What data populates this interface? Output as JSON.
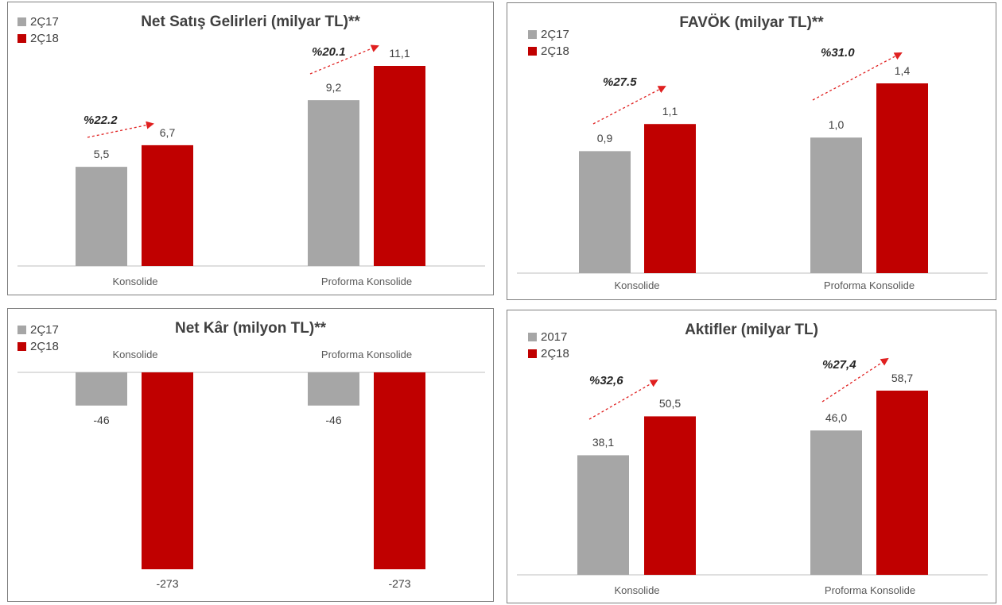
{
  "colors": {
    "prev": "#a6a6a6",
    "curr": "#c00000",
    "arrow": "#e02020",
    "axis": "#bfbfbf"
  },
  "chart_data": [
    {
      "type": "bar",
      "title": "Net Satış Gelirleri (milyar TL)**",
      "categories": [
        "Konsolide",
        "Proforma Konsolide"
      ],
      "series": [
        {
          "name": "2Ç17",
          "values": [
            5.5,
            9.2
          ],
          "labels": [
            "5,5",
            "9,2"
          ]
        },
        {
          "name": "2Ç18",
          "values": [
            6.7,
            11.1
          ],
          "labels": [
            "6,7",
            "11,1"
          ]
        }
      ],
      "growth": [
        "%22.2",
        "%20.1"
      ],
      "ylim": [
        0,
        11.1
      ],
      "legend": "top-left",
      "grid": false
    },
    {
      "type": "bar",
      "title": "FAVÖK (milyar TL)**",
      "categories": [
        "Konsolide",
        "Proforma Konsolide"
      ],
      "series": [
        {
          "name": "2Ç17",
          "values": [
            0.9,
            1.0
          ],
          "labels": [
            "0,9",
            "1,0"
          ]
        },
        {
          "name": "2Ç18",
          "values": [
            1.1,
            1.4
          ],
          "labels": [
            "1,1",
            "1,4"
          ]
        }
      ],
      "growth": [
        "%27.5",
        "%31.0"
      ],
      "ylim": [
        0,
        1.4
      ],
      "legend": "top-left",
      "grid": false
    },
    {
      "type": "bar",
      "title": "Net Kâr (milyon TL)**",
      "categories": [
        "Konsolide",
        "Proforma Konsolide"
      ],
      "series": [
        {
          "name": "2Ç17",
          "values": [
            -46,
            -46
          ],
          "labels": [
            "-46",
            "-46"
          ]
        },
        {
          "name": "2Ç18",
          "values": [
            -273,
            -273
          ],
          "labels": [
            "-273",
            "-273"
          ]
        }
      ],
      "growth": [],
      "ylim": [
        -273,
        0
      ],
      "legend": "top-left",
      "grid": false
    },
    {
      "type": "bar",
      "title": "Aktifler (milyar TL)",
      "categories": [
        "Konsolide",
        "Proforma Konsolide"
      ],
      "series": [
        {
          "name": "2017",
          "values": [
            38.1,
            46.0
          ],
          "labels": [
            "38,1",
            "46,0"
          ]
        },
        {
          "name": "2Ç18",
          "values": [
            50.5,
            58.7
          ],
          "labels": [
            "50,5",
            "58,7"
          ]
        }
      ],
      "growth": [
        "%32,6",
        "%27,4"
      ],
      "ylim": [
        0,
        58.7
      ],
      "legend": "top-left",
      "grid": false
    }
  ]
}
